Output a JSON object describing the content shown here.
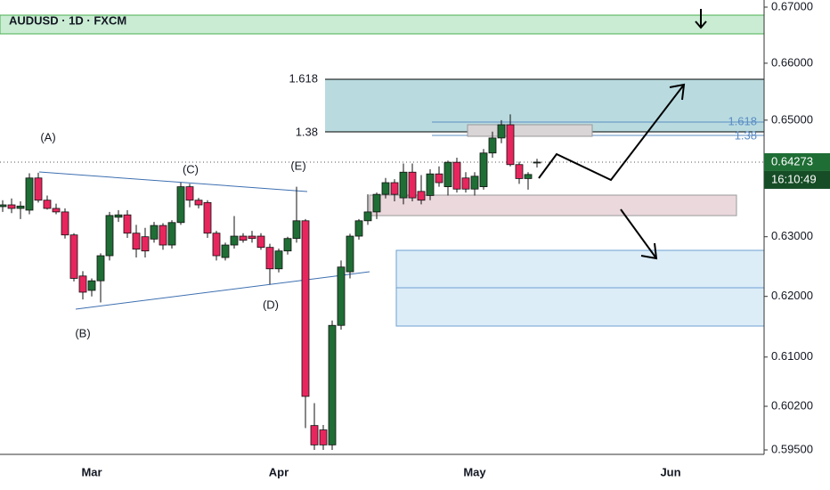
{
  "chart_data": {
    "type": "candlestick",
    "title": "AUDUSD · 1D · FXCM",
    "categories": [
      null,
      null,
      null,
      null,
      null,
      null,
      null,
      null,
      null,
      null,
      "Mar",
      null,
      null,
      null,
      null,
      null,
      null,
      null,
      null,
      null,
      null,
      null,
      null,
      null,
      null,
      null,
      null,
      null,
      null,
      null,
      null,
      "Apr",
      null,
      null,
      null,
      null,
      null,
      null,
      null,
      null,
      null,
      null,
      null,
      null,
      null,
      null,
      null,
      null,
      null,
      null,
      null,
      null,
      null,
      "May",
      null,
      null,
      null,
      null,
      null,
      null,
      null,
      null,
      null,
      null,
      null,
      null,
      null,
      null,
      null,
      null,
      null,
      null,
      null,
      null,
      null,
      "Jun",
      null,
      null,
      null,
      null,
      null,
      null,
      null,
      null,
      null,
      null
    ],
    "open": [
      0.6351,
      0.6354,
      0.6348,
      0.6345,
      0.64,
      0.6362,
      0.6348,
      0.6342,
      0.6303,
      0.6234,
      0.621,
      0.6226,
      0.6268,
      0.6333,
      0.6337,
      0.6306,
      0.63,
      0.6296,
      0.6319,
      0.6286,
      0.6324,
      0.6385,
      0.6362,
      0.6358,
      0.6306,
      0.6265,
      0.6286,
      0.6301,
      0.6301,
      0.6301,
      0.6282,
      0.6246,
      0.6276,
      0.6297,
      0.6327,
      0.5989,
      0.5982,
      0.5958,
      0.6152,
      0.6241,
      0.6301,
      0.6327,
      0.6342,
      0.6372,
      0.6392,
      0.6366,
      0.641,
      0.6377,
      0.637,
      0.6407,
      0.6385,
      0.6427,
      0.64,
      0.6381,
      0.6385,
      0.6443,
      0.6469,
      0.6492,
      0.6423,
      0.6399,
      0.6426,
      null,
      null,
      null,
      null,
      null,
      null,
      null,
      null,
      null,
      null,
      null,
      null,
      null,
      null,
      null,
      null,
      null,
      null,
      null,
      null,
      null,
      null,
      null,
      null,
      null
    ],
    "high": [
      0.6362,
      0.6365,
      0.636,
      0.6408,
      0.6409,
      0.637,
      0.6356,
      0.6348,
      0.6306,
      0.6242,
      0.623,
      0.6272,
      0.6342,
      0.6345,
      0.6345,
      0.632,
      0.6315,
      0.6325,
      0.6323,
      0.6328,
      0.6392,
      0.639,
      0.6366,
      0.6362,
      0.631,
      0.629,
      0.6335,
      0.6306,
      0.631,
      0.6306,
      0.6288,
      0.628,
      0.63,
      0.6385,
      0.633,
      0.6025,
      0.599,
      0.616,
      0.626,
      0.6305,
      0.633,
      0.6372,
      0.6375,
      0.64,
      0.6398,
      0.6425,
      0.6425,
      0.6405,
      0.6415,
      0.642,
      0.643,
      0.6435,
      0.641,
      0.641,
      0.645,
      0.648,
      0.65,
      0.651,
      0.6428,
      0.641,
      0.6433,
      null,
      null,
      null,
      null,
      null,
      null,
      null,
      null,
      null,
      null,
      null,
      null,
      null,
      null,
      null,
      null,
      null,
      null,
      null,
      null,
      null,
      null,
      null,
      null,
      null
    ],
    "low": [
      0.6342,
      0.634,
      0.633,
      0.6338,
      0.6358,
      0.6346,
      0.6338,
      0.6297,
      0.6225,
      0.6195,
      0.62,
      0.619,
      0.626,
      0.6325,
      0.6298,
      0.6265,
      0.6265,
      0.629,
      0.6278,
      0.628,
      0.632,
      0.635,
      0.6348,
      0.6298,
      0.626,
      0.626,
      0.628,
      0.629,
      0.629,
      0.6278,
      0.622,
      0.624,
      0.627,
      0.629,
      0.5985,
      0.595,
      0.595,
      0.595,
      0.6145,
      0.623,
      0.6295,
      0.632,
      0.633,
      0.6365,
      0.636,
      0.6355,
      0.636,
      0.6355,
      0.6362,
      0.6385,
      0.637,
      0.6375,
      0.6375,
      0.637,
      0.638,
      0.6435,
      0.646,
      0.642,
      0.639,
      0.638,
      0.6418,
      null,
      null,
      null,
      null,
      null,
      null,
      null,
      null,
      null,
      null,
      null,
      null,
      null,
      null,
      null,
      null,
      null,
      null,
      null,
      null,
      null,
      null,
      null,
      null,
      null
    ],
    "close": [
      0.6354,
      0.6348,
      0.6352,
      0.64,
      0.6362,
      0.6348,
      0.6342,
      0.6303,
      0.623,
      0.6207,
      0.6226,
      0.6268,
      0.6336,
      0.6337,
      0.6306,
      0.6279,
      0.6276,
      0.6319,
      0.6286,
      0.6324,
      0.6385,
      0.6362,
      0.6354,
      0.6306,
      0.6268,
      0.6286,
      0.6301,
      0.6294,
      0.6297,
      0.6282,
      0.6246,
      0.6276,
      0.6297,
      0.6327,
      0.6036,
      0.5958,
      0.5958,
      0.6152,
      0.6249,
      0.6301,
      0.6327,
      0.6342,
      0.6372,
      0.6392,
      0.6372,
      0.641,
      0.6366,
      0.6362,
      0.6407,
      0.6392,
      0.6427,
      0.6381,
      0.6381,
      0.6403,
      0.6443,
      0.6469,
      0.6492,
      0.6423,
      0.6399,
      0.6406,
      0.64273,
      null,
      null,
      null,
      null,
      null,
      null,
      null,
      null,
      null,
      null,
      null,
      null,
      null,
      null,
      null,
      null,
      null,
      null,
      null,
      null,
      null,
      null,
      null,
      null,
      null
    ],
    "up_color": "#1f6e35",
    "down_color": "#e8265e",
    "log_scale": true,
    "ylim": [
      0.59429,
      0.67128
    ],
    "yticks": [
      {
        "value": 0.67,
        "label": "0.67000"
      },
      {
        "value": 0.66,
        "label": "0.66000"
      },
      {
        "value": 0.65,
        "label": "0.65000"
      },
      {
        "value": 0.63,
        "label": "0.63000"
      },
      {
        "value": 0.62,
        "label": "0.62000"
      },
      {
        "value": 0.61,
        "label": "0.61000"
      },
      {
        "value": 0.602,
        "label": "0.60200"
      },
      {
        "value": 0.595,
        "label": "0.59500"
      }
    ],
    "annotations": [
      "(A)",
      "(B)",
      "(C)",
      "(D)",
      "(E)"
    ],
    "fib_labels": [
      "1.618",
      "1.38"
    ],
    "countdown": "16:10:49"
  }
}
